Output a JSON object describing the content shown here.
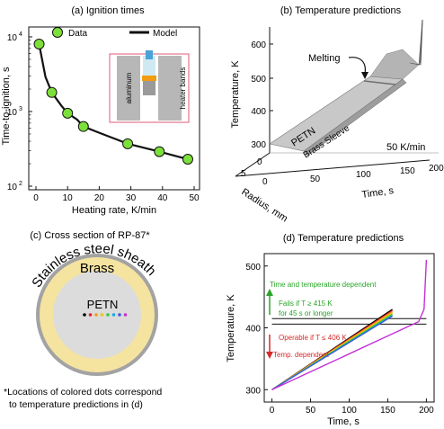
{
  "panel_a": {
    "caption": "(a) Ignition times",
    "xlabel": "Heating rate, K/min",
    "ylabel": "Time-to-ignition, s",
    "legend": {
      "data": "Data",
      "model": "Model"
    },
    "x_ticks": [
      "0",
      "10",
      "20",
      "30",
      "40",
      "50"
    ],
    "y_ticks": [
      {
        "base": "10",
        "exp": "4"
      },
      {
        "base": "10",
        "exp": "3"
      },
      {
        "base": "10",
        "exp": "2"
      }
    ],
    "inset": {
      "left_label": "aluminum",
      "right_label": "heater bands"
    }
  },
  "panel_b": {
    "caption": "(b) Temperature predictions",
    "zlabel": "Temperature, K",
    "z_ticks": [
      "600",
      "500",
      "400",
      "300"
    ],
    "xlabel": "Time, s",
    "x_ticks": [
      "0",
      "50",
      "100",
      "150",
      "200"
    ],
    "ylabel": "Radius, mm",
    "y_ticks": [
      "0",
      "5"
    ],
    "annotations": {
      "melting": "Melting",
      "petn": "PETN",
      "sleeve": "Brass Sleeve",
      "rate": "50 K/min"
    }
  },
  "panel_c": {
    "caption": "(c) Cross section of RP-87*",
    "outer_label": "Stainless steel sheath",
    "middle_label": "Brass",
    "core_label": "PETN",
    "dot_colors": [
      "#000000",
      "#e8202a",
      "#f39c12",
      "#f1c40f",
      "#2ecc40",
      "#1aa7e6",
      "#3a5bd9",
      "#c42fd6"
    ],
    "footnote_1": "*Locations of colored dots correspond",
    "footnote_2": "to temperature predictions in (d)"
  },
  "panel_d": {
    "caption": "(d) Temperature predictions",
    "xlabel": "Time, s",
    "ylabel": "Temperature, K",
    "x_ticks": [
      "0",
      "50",
      "100",
      "150",
      "200"
    ],
    "y_ticks": [
      "500",
      "400",
      "300"
    ],
    "green_title": "Time and temperature dependent",
    "green_note_1": "Fails if T ≥ 415 K",
    "green_note_2": "for 45 s or longer",
    "red_note": "Operable if T ≤ 406 K",
    "red_title": "Temp. dependent",
    "colors": {
      "green": "#2aa52a",
      "red": "#d62a2a"
    }
  },
  "chart_data": [
    {
      "type": "scatter",
      "title": "(a) Ignition times",
      "xlabel": "Heating rate, K/min",
      "ylabel": "Time-to-ignition, s",
      "xlim": [
        0,
        50
      ],
      "ylim": [
        100,
        10000
      ],
      "yscale": "log",
      "series": [
        {
          "name": "Data",
          "x": [
            1,
            5,
            10,
            15,
            29,
            39,
            48
          ],
          "y": [
            8000,
            1800,
            950,
            630,
            370,
            290,
            230
          ]
        },
        {
          "name": "Model",
          "x": [
            1,
            3,
            5,
            8,
            10,
            13,
            15,
            20,
            25,
            29,
            35,
            39,
            44,
            48
          ],
          "y": [
            8000,
            2900,
            1800,
            1200,
            950,
            780,
            630,
            520,
            430,
            370,
            320,
            290,
            255,
            230
          ]
        }
      ],
      "legend": "top-right"
    },
    {
      "type": "line",
      "title": "(d) Temperature predictions",
      "xlabel": "Time, s",
      "ylabel": "Temperature, K",
      "xlim": [
        -10,
        210
      ],
      "ylim": [
        280,
        520
      ],
      "series": [
        {
          "color": "#000000",
          "x": [
            0,
            156
          ],
          "y": [
            300,
            430
          ]
        },
        {
          "color": "#e8202a",
          "x": [
            0,
            156
          ],
          "y": [
            300,
            428
          ]
        },
        {
          "color": "#f39c12",
          "x": [
            0,
            156
          ],
          "y": [
            300,
            426
          ]
        },
        {
          "color": "#f1c40f",
          "x": [
            0,
            156
          ],
          "y": [
            300,
            424
          ]
        },
        {
          "color": "#2ecc40",
          "x": [
            0,
            156
          ],
          "y": [
            300,
            422
          ]
        },
        {
          "color": "#1aa7e6",
          "x": [
            0,
            156
          ],
          "y": [
            300,
            420
          ]
        },
        {
          "color": "#3a5bd9",
          "x": [
            0,
            156
          ],
          "y": [
            300,
            419
          ]
        },
        {
          "color": "#c42fd6",
          "x": [
            0,
            190,
            197,
            200
          ],
          "y": [
            300,
            410,
            430,
            510
          ]
        }
      ],
      "thresholds": [
        415,
        406
      ]
    }
  ]
}
